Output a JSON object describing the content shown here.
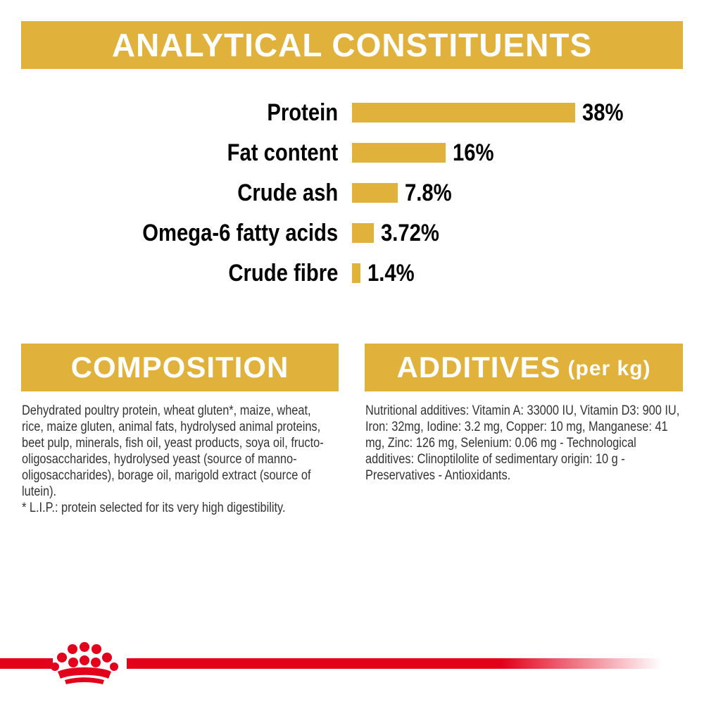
{
  "analytical": {
    "title": "ANALYTICAL CONSTITUENTS"
  },
  "chart_data": {
    "type": "bar",
    "orientation": "horizontal",
    "categories": [
      "Protein",
      "Fat content",
      "Crude ash",
      "Omega-6 fatty acids",
      "Crude fibre"
    ],
    "values": [
      38,
      16,
      7.8,
      3.72,
      1.4
    ],
    "value_labels": [
      "38%",
      "16%",
      "7.8%",
      "3.72%",
      "1.4%"
    ],
    "unit": "%",
    "bar_color": "#e0b13b"
  },
  "composition": {
    "title": "COMPOSITION",
    "text": "Dehydrated poultry protein, wheat gluten*, maize, wheat, rice, maize gluten, animal fats, hydrolysed animal proteins, beet pulp, minerals, fish oil, yeast products, soya oil, fructo-oligosaccharides, hydrolysed yeast (source of manno-oligosaccharides), borage oil, marigold extract (source of lutein).",
    "footnote": "* L.I.P.: protein selected for its very high digestibility."
  },
  "additives": {
    "title": "ADDITIVES",
    "unit": "(per kg)",
    "text": "Nutritional additives: Vitamin A: 33000 IU, Vitamin D3: 900 IU, Iron: 32mg, Iodine: 3.2 mg, Copper: 10 mg, Manganese: 41 mg, Zinc: 126 mg, Selenium: 0.06 mg - Technological additives: Clinoptilolite of sedimentary origin: 10 g - Preservatives - Antioxidants."
  },
  "colors": {
    "accent": "#e0b13b",
    "brand_red": "#e3001b"
  },
  "footer": {
    "logo_icon": "royal-crown-icon"
  }
}
